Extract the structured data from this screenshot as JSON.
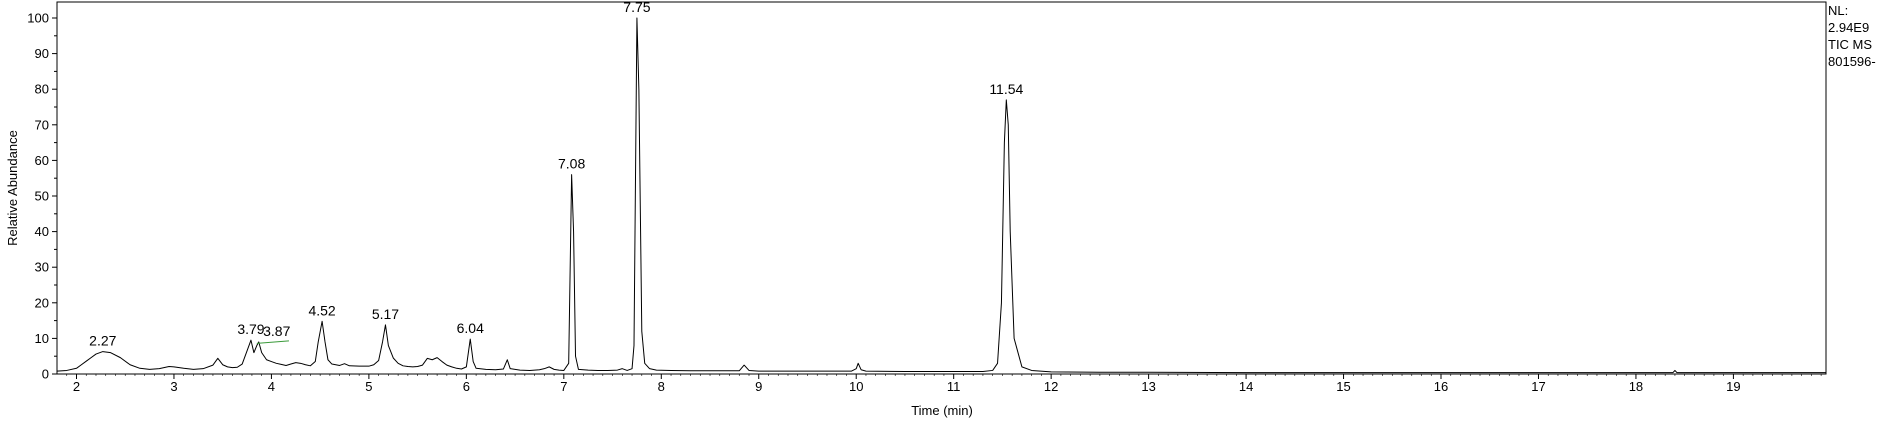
{
  "chart_data": {
    "type": "line",
    "xlabel": "Time (min)",
    "ylabel": "Relative Abundance",
    "xlim": [
      1.8,
      19.95
    ],
    "ylim": [
      0,
      100
    ],
    "x_ticks": [
      2,
      3,
      4,
      5,
      6,
      7,
      8,
      9,
      10,
      11,
      12,
      13,
      14,
      15,
      16,
      17,
      18,
      19
    ],
    "y_ticks": [
      0,
      10,
      20,
      30,
      40,
      50,
      60,
      70,
      80,
      90,
      100
    ],
    "grid": false,
    "info": [
      "NL:",
      "2.94E9",
      "TIC  MS",
      "801596-"
    ],
    "peak_labels": [
      {
        "x": 2.27,
        "y": 6.3,
        "text": "2.27"
      },
      {
        "x": 3.79,
        "y": 9.5,
        "text": "3.79"
      },
      {
        "x": 3.87,
        "y": 9.0,
        "text": "3.87"
      },
      {
        "x": 4.52,
        "y": 14.8,
        "text": "4.52"
      },
      {
        "x": 5.17,
        "y": 13.8,
        "text": "5.17"
      },
      {
        "x": 6.04,
        "y": 9.8,
        "text": "6.04"
      },
      {
        "x": 7.08,
        "y": 56.0,
        "text": "7.08"
      },
      {
        "x": 7.75,
        "y": 100.0,
        "text": "7.75"
      },
      {
        "x": 11.54,
        "y": 77.0,
        "text": "11.54"
      }
    ],
    "series": [
      {
        "color": "#000000",
        "points": [
          [
            1.8,
            0.8
          ],
          [
            1.9,
            1.0
          ],
          [
            2.0,
            1.6
          ],
          [
            2.05,
            2.6
          ],
          [
            2.1,
            3.6
          ],
          [
            2.15,
            4.6
          ],
          [
            2.2,
            5.6
          ],
          [
            2.27,
            6.3
          ],
          [
            2.35,
            6.0
          ],
          [
            2.45,
            4.6
          ],
          [
            2.55,
            2.6
          ],
          [
            2.65,
            1.6
          ],
          [
            2.75,
            1.3
          ],
          [
            2.85,
            1.5
          ],
          [
            2.95,
            2.1
          ],
          [
            3.0,
            2.0
          ],
          [
            3.1,
            1.6
          ],
          [
            3.2,
            1.3
          ],
          [
            3.3,
            1.5
          ],
          [
            3.4,
            2.5
          ],
          [
            3.45,
            4.4
          ],
          [
            3.5,
            2.6
          ],
          [
            3.55,
            2.0
          ],
          [
            3.6,
            1.8
          ],
          [
            3.65,
            1.9
          ],
          [
            3.7,
            2.8
          ],
          [
            3.75,
            6.5
          ],
          [
            3.79,
            9.5
          ],
          [
            3.82,
            6.0
          ],
          [
            3.85,
            8.0
          ],
          [
            3.87,
            9.0
          ],
          [
            3.9,
            6.0
          ],
          [
            3.95,
            4.0
          ],
          [
            4.0,
            3.5
          ],
          [
            4.05,
            3.0
          ],
          [
            4.1,
            2.7
          ],
          [
            4.15,
            2.4
          ],
          [
            4.2,
            2.8
          ],
          [
            4.25,
            3.2
          ],
          [
            4.3,
            3.0
          ],
          [
            4.35,
            2.6
          ],
          [
            4.4,
            2.3
          ],
          [
            4.45,
            3.5
          ],
          [
            4.48,
            9.0
          ],
          [
            4.52,
            14.8
          ],
          [
            4.55,
            9.0
          ],
          [
            4.58,
            4.0
          ],
          [
            4.62,
            2.8
          ],
          [
            4.7,
            2.4
          ],
          [
            4.75,
            2.9
          ],
          [
            4.8,
            2.3
          ],
          [
            4.9,
            2.2
          ],
          [
            5.0,
            2.2
          ],
          [
            5.05,
            2.6
          ],
          [
            5.1,
            3.8
          ],
          [
            5.14,
            9.0
          ],
          [
            5.17,
            13.8
          ],
          [
            5.2,
            8.0
          ],
          [
            5.25,
            4.5
          ],
          [
            5.3,
            3.0
          ],
          [
            5.35,
            2.3
          ],
          [
            5.4,
            2.1
          ],
          [
            5.45,
            2.0
          ],
          [
            5.5,
            2.1
          ],
          [
            5.55,
            2.5
          ],
          [
            5.6,
            4.4
          ],
          [
            5.65,
            4.0
          ],
          [
            5.7,
            4.6
          ],
          [
            5.75,
            3.5
          ],
          [
            5.8,
            2.5
          ],
          [
            5.85,
            2.0
          ],
          [
            5.9,
            1.6
          ],
          [
            5.95,
            1.4
          ],
          [
            6.0,
            2.0
          ],
          [
            6.04,
            9.8
          ],
          [
            6.07,
            3.5
          ],
          [
            6.1,
            1.6
          ],
          [
            6.2,
            1.3
          ],
          [
            6.3,
            1.2
          ],
          [
            6.38,
            1.4
          ],
          [
            6.42,
            4.0
          ],
          [
            6.45,
            1.5
          ],
          [
            6.55,
            1.1
          ],
          [
            6.65,
            1.0
          ],
          [
            6.75,
            1.2
          ],
          [
            6.8,
            1.5
          ],
          [
            6.85,
            2.0
          ],
          [
            6.9,
            1.3
          ],
          [
            6.95,
            1.1
          ],
          [
            7.0,
            1.0
          ],
          [
            7.05,
            3.0
          ],
          [
            7.08,
            56.0
          ],
          [
            7.1,
            40.0
          ],
          [
            7.12,
            5.0
          ],
          [
            7.15,
            1.3
          ],
          [
            7.25,
            1.1
          ],
          [
            7.35,
            1.0
          ],
          [
            7.45,
            1.0
          ],
          [
            7.55,
            1.1
          ],
          [
            7.6,
            1.5
          ],
          [
            7.65,
            1.0
          ],
          [
            7.7,
            1.5
          ],
          [
            7.72,
            8.0
          ],
          [
            7.75,
            100.0
          ],
          [
            7.77,
            80.0
          ],
          [
            7.8,
            12.0
          ],
          [
            7.83,
            3.0
          ],
          [
            7.88,
            1.5
          ],
          [
            7.95,
            1.1
          ],
          [
            8.1,
            1.0
          ],
          [
            8.3,
            0.9
          ],
          [
            8.5,
            0.9
          ],
          [
            8.8,
            0.9
          ],
          [
            8.85,
            2.5
          ],
          [
            8.9,
            1.0
          ],
          [
            9.0,
            0.8
          ],
          [
            9.5,
            0.8
          ],
          [
            9.95,
            0.8
          ],
          [
            10.0,
            1.5
          ],
          [
            10.02,
            3.0
          ],
          [
            10.05,
            1.2
          ],
          [
            10.1,
            0.8
          ],
          [
            10.5,
            0.7
          ],
          [
            11.0,
            0.7
          ],
          [
            11.3,
            0.7
          ],
          [
            11.4,
            1.0
          ],
          [
            11.45,
            3.0
          ],
          [
            11.49,
            20.0
          ],
          [
            11.52,
            65.0
          ],
          [
            11.54,
            77.0
          ],
          [
            11.56,
            70.0
          ],
          [
            11.58,
            40.0
          ],
          [
            11.62,
            10.0
          ],
          [
            11.7,
            2.0
          ],
          [
            11.8,
            1.0
          ],
          [
            12.0,
            0.6
          ],
          [
            12.5,
            0.5
          ],
          [
            13.0,
            0.5
          ],
          [
            14.0,
            0.4
          ],
          [
            15.0,
            0.4
          ],
          [
            16.0,
            0.4
          ],
          [
            17.0,
            0.4
          ],
          [
            18.0,
            0.4
          ],
          [
            18.38,
            0.4
          ],
          [
            18.4,
            1.0
          ],
          [
            18.42,
            0.4
          ],
          [
            19.0,
            0.4
          ],
          [
            19.95,
            0.4
          ]
        ]
      }
    ],
    "annotation_line": {
      "color": "#3a9a3a",
      "x": [
        3.85,
        4.18
      ],
      "y": [
        8.6,
        9.3
      ]
    }
  }
}
